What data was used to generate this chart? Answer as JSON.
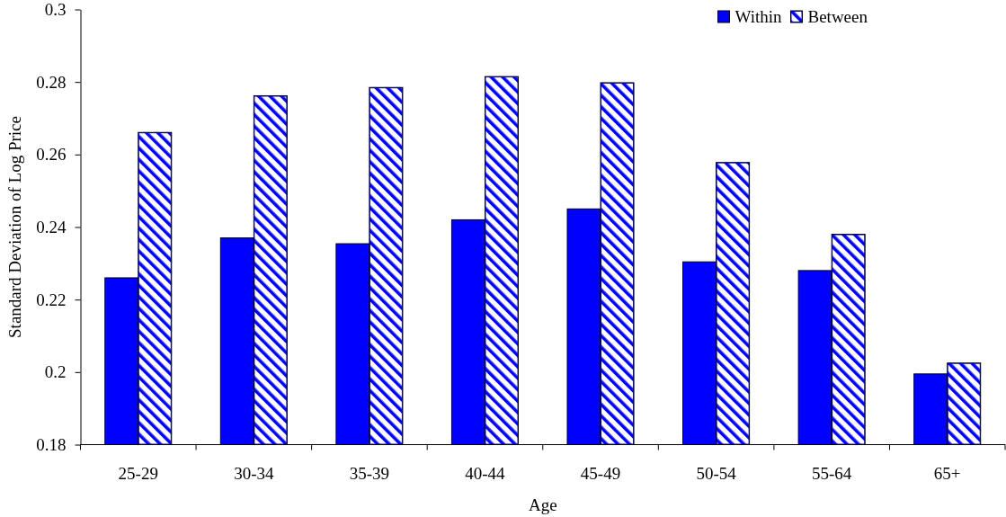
{
  "chart_data": {
    "type": "bar",
    "xlabel": "Age",
    "ylabel": "Standard Deviation of Log Price",
    "categories": [
      "25-29",
      "30-34",
      "35-39",
      "40-44",
      "45-49",
      "50-54",
      "55-64",
      "65+"
    ],
    "series": [
      {
        "name": "Within",
        "color": "#0000ff",
        "values": [
          0.226,
          0.237,
          0.2354,
          0.242,
          0.245,
          0.2304,
          0.228,
          0.1995
        ]
      },
      {
        "name": "Between",
        "color": "#0000ff",
        "values": [
          0.2661,
          0.2762,
          0.2785,
          0.2815,
          0.2798,
          0.2578,
          0.238,
          0.2025
        ]
      }
    ],
    "ylim": [
      0.18,
      0.3
    ],
    "yticks": [
      0.18,
      0.2,
      0.22,
      0.24,
      0.26,
      0.28,
      0.3
    ],
    "legend": "top right"
  }
}
